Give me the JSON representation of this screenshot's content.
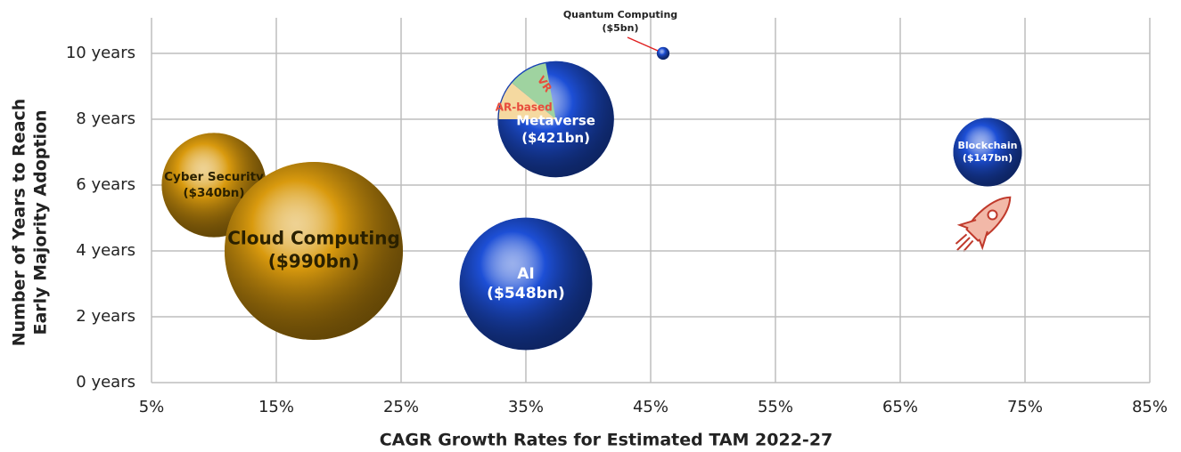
{
  "chart_data": {
    "type": "bubble",
    "x_label": "CAGR Growth Rates for Estimated TAM 2022-27",
    "y_label": [
      "Number of Years to Reach",
      "Early Majority Adoption"
    ],
    "xlim": [
      5,
      85
    ],
    "ylim": [
      0,
      10
    ],
    "xticks": [
      {
        "value": 5,
        "label": "5%"
      },
      {
        "value": 15,
        "label": "15%"
      },
      {
        "value": 25,
        "label": "25%"
      },
      {
        "value": 35,
        "label": "35%"
      },
      {
        "value": 45,
        "label": "45%"
      },
      {
        "value": 55,
        "label": "55%"
      },
      {
        "value": 65,
        "label": "65%"
      },
      {
        "value": 75,
        "label": "75%"
      },
      {
        "value": 85,
        "label": "85%"
      }
    ],
    "yticks": [
      {
        "value": 0,
        "label": "0 years"
      },
      {
        "value": 2,
        "label": "2 years"
      },
      {
        "value": 4,
        "label": "4 years"
      },
      {
        "value": 6,
        "label": "6 years"
      },
      {
        "value": 8,
        "label": "8 years"
      },
      {
        "value": 10,
        "label": "10 years"
      }
    ],
    "grid": true,
    "points": [
      {
        "label": "Cyber Security",
        "x": 10,
        "y": 6,
        "size": 340,
        "value_label": "($340bn)",
        "color": "#d99a0e"
      },
      {
        "label": "Cloud Computing",
        "x": 18,
        "y": 4,
        "size": 990,
        "value_label": "($990bn)",
        "color": "#d99a0e"
      },
      {
        "label": "AI",
        "x": 35,
        "y": 3,
        "size": 548,
        "value_label": "($548bn)",
        "color": "#1d4fd6"
      },
      {
        "label": "Metaverse",
        "x": 37.4,
        "y": 8,
        "size": 421,
        "value_label": "($421bn)",
        "color": "#1d4fd6",
        "inset": [
          "AR-based",
          "VR"
        ]
      },
      {
        "label": "Quantum Computing",
        "x": 46,
        "y": 10,
        "size": 5,
        "value_label": "($5bn)",
        "color": "#1d4fd6"
      },
      {
        "label": "Blockchain",
        "x": 72,
        "y": 7,
        "size": 147,
        "value_label": "($147bn)",
        "color": "#1d4fd6"
      }
    ]
  }
}
